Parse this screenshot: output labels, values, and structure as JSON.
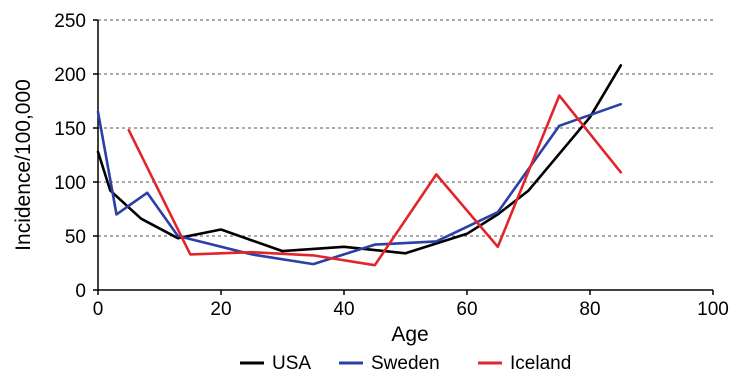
{
  "chart_data": {
    "type": "line",
    "title": "",
    "xlabel": "Age",
    "ylabel": "Incidence/100,000",
    "xlim": [
      0,
      100
    ],
    "ylim": [
      0,
      250
    ],
    "xticks": [
      0,
      20,
      40,
      60,
      80,
      100
    ],
    "yticks": [
      0,
      50,
      100,
      150,
      200,
      250
    ],
    "grid": "horizontal dashed",
    "legend_position": "bottom",
    "series": [
      {
        "name": "USA",
        "color": "#000000",
        "points": [
          [
            0,
            128
          ],
          [
            2,
            92
          ],
          [
            7,
            66
          ],
          [
            13,
            48
          ],
          [
            20,
            56
          ],
          [
            30,
            36
          ],
          [
            40,
            40
          ],
          [
            50,
            34
          ],
          [
            60,
            52
          ],
          [
            65,
            70
          ],
          [
            70,
            92
          ],
          [
            80,
            160
          ],
          [
            85,
            208
          ]
        ]
      },
      {
        "name": "Sweden",
        "color": "#2b3fa8",
        "points": [
          [
            0,
            165
          ],
          [
            3,
            70
          ],
          [
            8,
            90
          ],
          [
            13,
            50
          ],
          [
            25,
            33
          ],
          [
            35,
            24
          ],
          [
            45,
            42
          ],
          [
            55,
            45
          ],
          [
            65,
            72
          ],
          [
            75,
            152
          ],
          [
            85,
            172
          ]
        ]
      },
      {
        "name": "Iceland",
        "color": "#e0262b",
        "points": [
          [
            5,
            148
          ],
          [
            15,
            33
          ],
          [
            25,
            35
          ],
          [
            35,
            32
          ],
          [
            45,
            23
          ],
          [
            55,
            107
          ],
          [
            65,
            40
          ],
          [
            75,
            180
          ],
          [
            85,
            109
          ]
        ]
      }
    ]
  }
}
